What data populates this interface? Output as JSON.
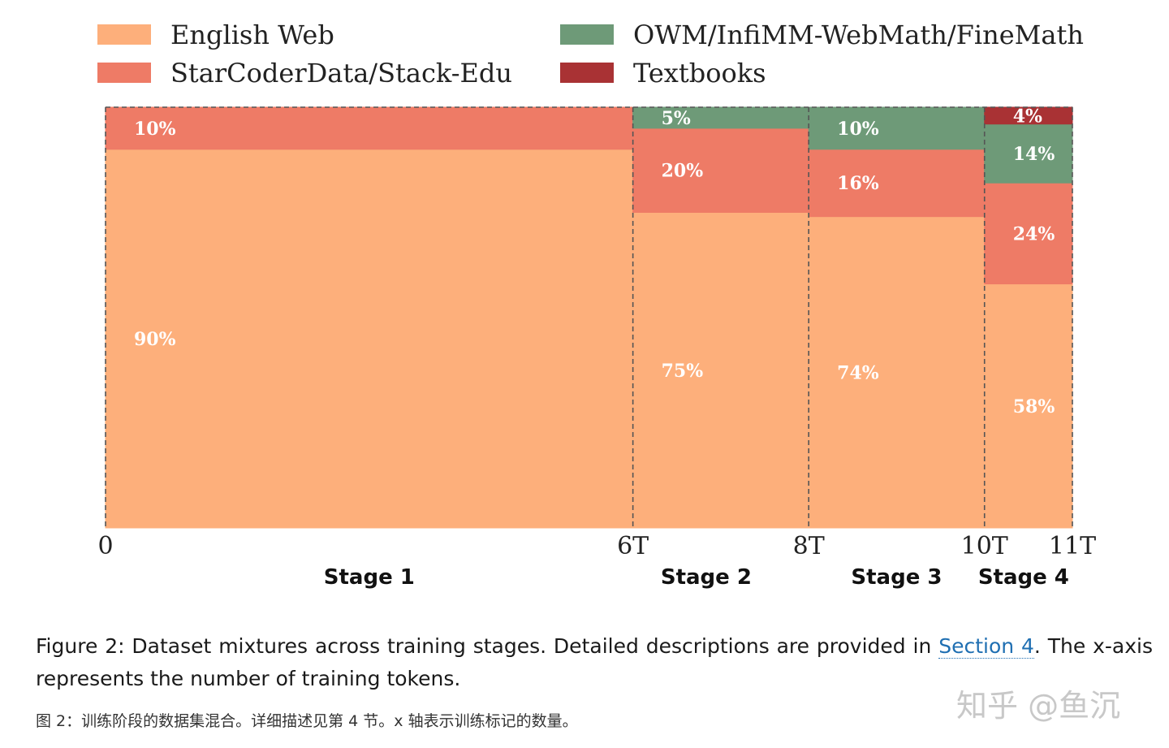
{
  "chart_data": {
    "type": "bar",
    "subtype": "stacked-variable-width",
    "x_boundaries": [
      0,
      6,
      8,
      10,
      11
    ],
    "tick_labels": [
      "0",
      "6T",
      "8T",
      "10T",
      "11T"
    ],
    "stage_labels": [
      "Stage 1",
      "Stage 2",
      "Stage 3",
      "Stage 4"
    ],
    "ylim": [
      0,
      100
    ],
    "legend_placement": "top",
    "series": [
      {
        "name": "English Web",
        "color": "#FDAF7B",
        "values": [
          90,
          75,
          74,
          58
        ],
        "labels": [
          "90%",
          "75%",
          "74%",
          "58%"
        ]
      },
      {
        "name": "StarCoderData/Stack-Edu",
        "color": "#EE7B66",
        "values": [
          10,
          20,
          16,
          24
        ],
        "labels": [
          "10%",
          "20%",
          "16%",
          "24%"
        ]
      },
      {
        "name": "OWM/InfiMM-WebMath/FineMath",
        "color": "#6E9A78",
        "values": [
          0,
          5,
          10,
          14
        ],
        "labels": [
          "",
          "5%",
          "10%",
          "14%"
        ]
      },
      {
        "name": "Textbooks",
        "color": "#A93234",
        "values": [
          0,
          0,
          0,
          4
        ],
        "labels": [
          "",
          "",
          "",
          "4%"
        ]
      }
    ]
  },
  "caption": {
    "prefix": "Figure 2:",
    "text_before_link": " Dataset mixtures across training stages. Detailed descriptions are provided in ",
    "link": "Section 4",
    "text_after_link": ". The x-axis represents the number of training tokens."
  },
  "caption_cn": "图 2：训练阶段的数据集混合。详细描述见第 4 节。x 轴表示训练标记的数量。",
  "watermark": "知乎 @鱼沉"
}
